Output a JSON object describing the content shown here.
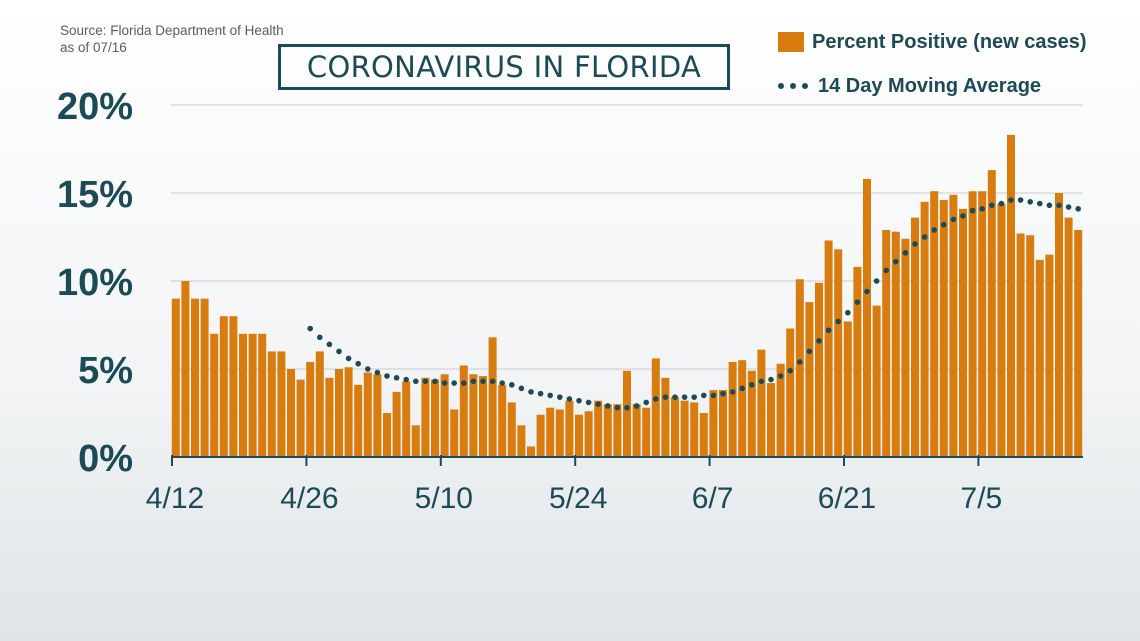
{
  "source_line1": "Source: Florida Department of Health",
  "source_line2": "as of 07/16",
  "chart_data": {
    "type": "bar",
    "title": "CORONAVIRUS IN FLORIDA",
    "xlabel": "",
    "ylabel": "",
    "ylim": [
      0,
      20
    ],
    "y_ticks": [
      "0%",
      "5%",
      "10%",
      "15%",
      "20%"
    ],
    "x_tick_labels": [
      "4/12",
      "4/26",
      "5/10",
      "5/24",
      "6/7",
      "6/21",
      "7/5"
    ],
    "x_tick_index": [
      0,
      14,
      28,
      42,
      56,
      70,
      84
    ],
    "grid": true,
    "legend_position": "top-right",
    "colors": {
      "bar": "#d97c0f",
      "average": "#1c4a56",
      "grid": "#c8cdd0",
      "axis": "#1c4a56"
    },
    "categories": [
      "4/12",
      "4/13",
      "4/14",
      "4/15",
      "4/16",
      "4/17",
      "4/18",
      "4/19",
      "4/20",
      "4/21",
      "4/22",
      "4/23",
      "4/24",
      "4/25",
      "4/26",
      "4/27",
      "4/28",
      "4/29",
      "4/30",
      "5/1",
      "5/2",
      "5/3",
      "5/4",
      "5/5",
      "5/6",
      "5/7",
      "5/8",
      "5/9",
      "5/10",
      "5/11",
      "5/12",
      "5/13",
      "5/14",
      "5/15",
      "5/16",
      "5/17",
      "5/18",
      "5/19",
      "5/20",
      "5/21",
      "5/22",
      "5/23",
      "5/24",
      "5/25",
      "5/26",
      "5/27",
      "5/28",
      "5/29",
      "5/30",
      "5/31",
      "6/1",
      "6/2",
      "6/3",
      "6/4",
      "6/5",
      "6/6",
      "6/7",
      "6/8",
      "6/9",
      "6/10",
      "6/11",
      "6/12",
      "6/13",
      "6/14",
      "6/15",
      "6/16",
      "6/17",
      "6/18",
      "6/19",
      "6/20",
      "6/21",
      "6/22",
      "6/23",
      "6/24",
      "6/25",
      "6/26",
      "6/27",
      "6/28",
      "6/29",
      "6/30",
      "7/1",
      "7/2",
      "7/3",
      "7/4",
      "7/5",
      "7/6",
      "7/7",
      "7/8",
      "7/9",
      "7/10",
      "7/11",
      "7/12",
      "7/13",
      "7/14",
      "7/15"
    ],
    "series": [
      {
        "name": "Percent Positive (new cases)",
        "values": [
          9.0,
          10.0,
          9.0,
          9.0,
          7.0,
          8.0,
          8.0,
          7.0,
          7.0,
          7.0,
          6.0,
          6.0,
          5.0,
          4.4,
          5.4,
          6.0,
          4.5,
          5.0,
          5.1,
          4.1,
          4.8,
          4.7,
          2.5,
          3.7,
          4.3,
          1.8,
          4.5,
          4.4,
          4.7,
          2.7,
          5.2,
          4.7,
          4.6,
          6.8,
          4.1,
          3.1,
          1.8,
          0.6,
          2.4,
          2.8,
          2.7,
          3.2,
          2.4,
          2.6,
          3.2,
          3.0,
          3.0,
          4.9,
          3.0,
          2.8,
          5.6,
          4.5,
          3.4,
          3.2,
          3.1,
          2.5,
          3.8,
          3.8,
          5.4,
          5.5,
          4.9,
          6.1,
          4.2,
          5.3,
          7.3,
          10.1,
          8.8,
          9.9,
          12.3,
          11.8,
          7.7,
          10.8,
          15.8,
          8.6,
          12.9,
          12.8,
          12.4,
          13.6,
          14.5,
          15.1,
          14.6,
          14.9,
          14.1,
          15.1,
          15.1,
          16.3,
          14.4,
          18.3,
          12.7,
          12.6,
          11.2,
          11.5,
          15.0,
          13.6,
          12.9
        ]
      },
      {
        "name": "14 Day Moving Average",
        "values": [
          null,
          null,
          null,
          null,
          null,
          null,
          null,
          null,
          null,
          null,
          null,
          null,
          null,
          null,
          7.3,
          6.8,
          6.4,
          6.0,
          5.6,
          5.3,
          5.0,
          4.8,
          4.6,
          4.5,
          4.4,
          4.3,
          4.3,
          4.3,
          4.2,
          4.2,
          4.2,
          4.3,
          4.3,
          4.3,
          4.2,
          4.1,
          3.9,
          3.7,
          3.6,
          3.5,
          3.4,
          3.3,
          3.2,
          3.1,
          3.0,
          2.9,
          2.8,
          2.8,
          2.9,
          3.1,
          3.3,
          3.4,
          3.4,
          3.4,
          3.4,
          3.5,
          3.5,
          3.6,
          3.7,
          3.9,
          4.1,
          4.3,
          4.4,
          4.6,
          4.9,
          5.4,
          6.0,
          6.6,
          7.2,
          7.7,
          8.2,
          8.8,
          9.4,
          10.0,
          10.6,
          11.1,
          11.6,
          12.1,
          12.5,
          12.9,
          13.2,
          13.5,
          13.7,
          14.0,
          14.1,
          14.3,
          14.4,
          14.6,
          14.6,
          14.5,
          14.4,
          14.3,
          14.3,
          14.2,
          14.1
        ]
      }
    ]
  }
}
